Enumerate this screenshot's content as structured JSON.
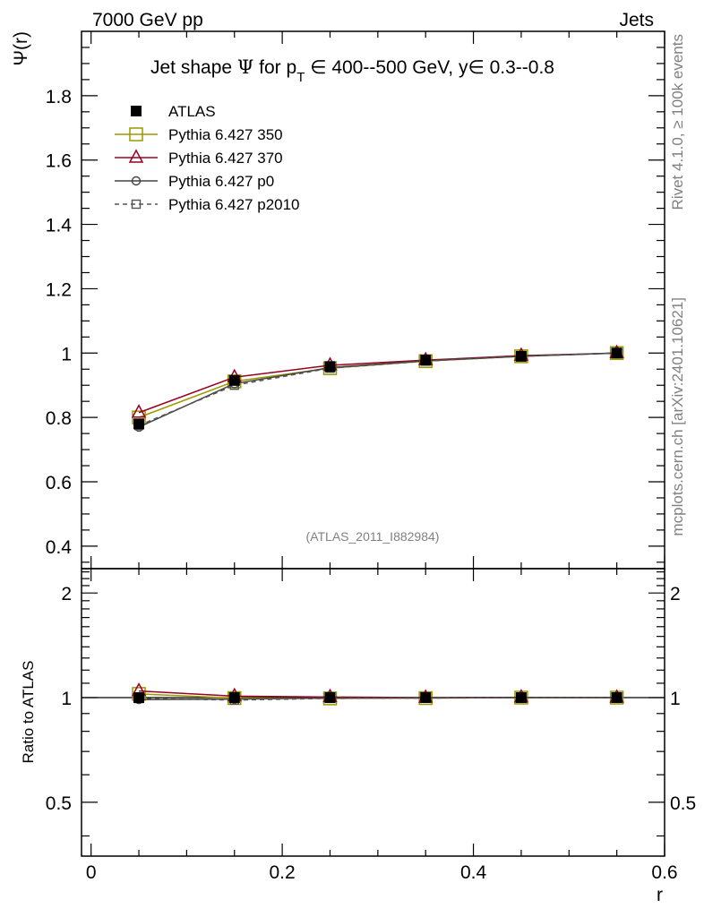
{
  "header": {
    "left": "7000 GeV pp",
    "right": "Jets"
  },
  "side_label_top": "Rivet 4.1.0, ≥ 100k events",
  "side_label_bottom": "mcplots.cern.ch [arXiv:2401.10621]",
  "chart_data": {
    "type": "line",
    "title_prefix": "Jet shape ",
    "title_psi": "Ψ",
    "title_mid": " for p",
    "title_sub": "T",
    "title_rest": " ∈ 400--500 GeV, y∈ 0.3--0.8",
    "analysis_tag": "(ATLAS_2011_I882984)",
    "xlabel": "r",
    "ylabel": "Ψ(r)",
    "ratio_ylabel": "Ratio to ATLAS",
    "xlim": [
      -0.01,
      0.6
    ],
    "ylim": [
      0.33,
      2.0
    ],
    "ratio_ylim": [
      0.35,
      2.35
    ],
    "x_ticks": [
      "0",
      "0.2",
      "0.4",
      "0.6"
    ],
    "y_ticks": [
      "0.4",
      "0.6",
      "0.8",
      "1",
      "1.2",
      "1.4",
      "1.6",
      "1.8"
    ],
    "ratio_ticks": [
      "0.5",
      "1",
      "2"
    ],
    "x": [
      0.05,
      0.15,
      0.25,
      0.35,
      0.45,
      0.55
    ],
    "series": [
      {
        "name": "ATLAS",
        "color": "#000000",
        "marker": "square-filled",
        "dash": "",
        "values": [
          0.78,
          0.915,
          0.958,
          0.978,
          0.99,
          1.0
        ],
        "ratio": [
          1.0,
          1.0,
          1.0,
          1.0,
          1.0,
          1.0
        ]
      },
      {
        "name": "Pythia 6.427 350",
        "color": "#999900",
        "marker": "square-open",
        "dash": "",
        "values": [
          0.8,
          0.912,
          0.953,
          0.975,
          0.99,
          1.0
        ],
        "ratio": [
          1.025,
          0.997,
          0.995,
          0.997,
          1.0,
          1.0
        ]
      },
      {
        "name": "Pythia 6.427 370",
        "color": "#990022",
        "marker": "triangle-open",
        "dash": "",
        "values": [
          0.815,
          0.925,
          0.962,
          0.978,
          0.992,
          1.0
        ],
        "ratio": [
          1.045,
          1.01,
          1.004,
          1.0,
          1.002,
          1.0
        ]
      },
      {
        "name": "Pythia 6.427 p0",
        "color": "#444444",
        "marker": "circle-open",
        "dash": "",
        "values": [
          0.77,
          0.905,
          0.955,
          0.976,
          0.99,
          1.0
        ],
        "ratio": [
          0.987,
          0.99,
          0.997,
          0.998,
          1.0,
          1.0
        ]
      },
      {
        "name": "Pythia 6.427 p2010",
        "color": "#555555",
        "marker": "square-small",
        "dash": "5,4",
        "values": [
          0.775,
          0.9,
          0.953,
          0.975,
          0.99,
          1.0
        ],
        "ratio": [
          0.994,
          0.984,
          0.995,
          0.997,
          1.0,
          1.0
        ]
      }
    ]
  }
}
